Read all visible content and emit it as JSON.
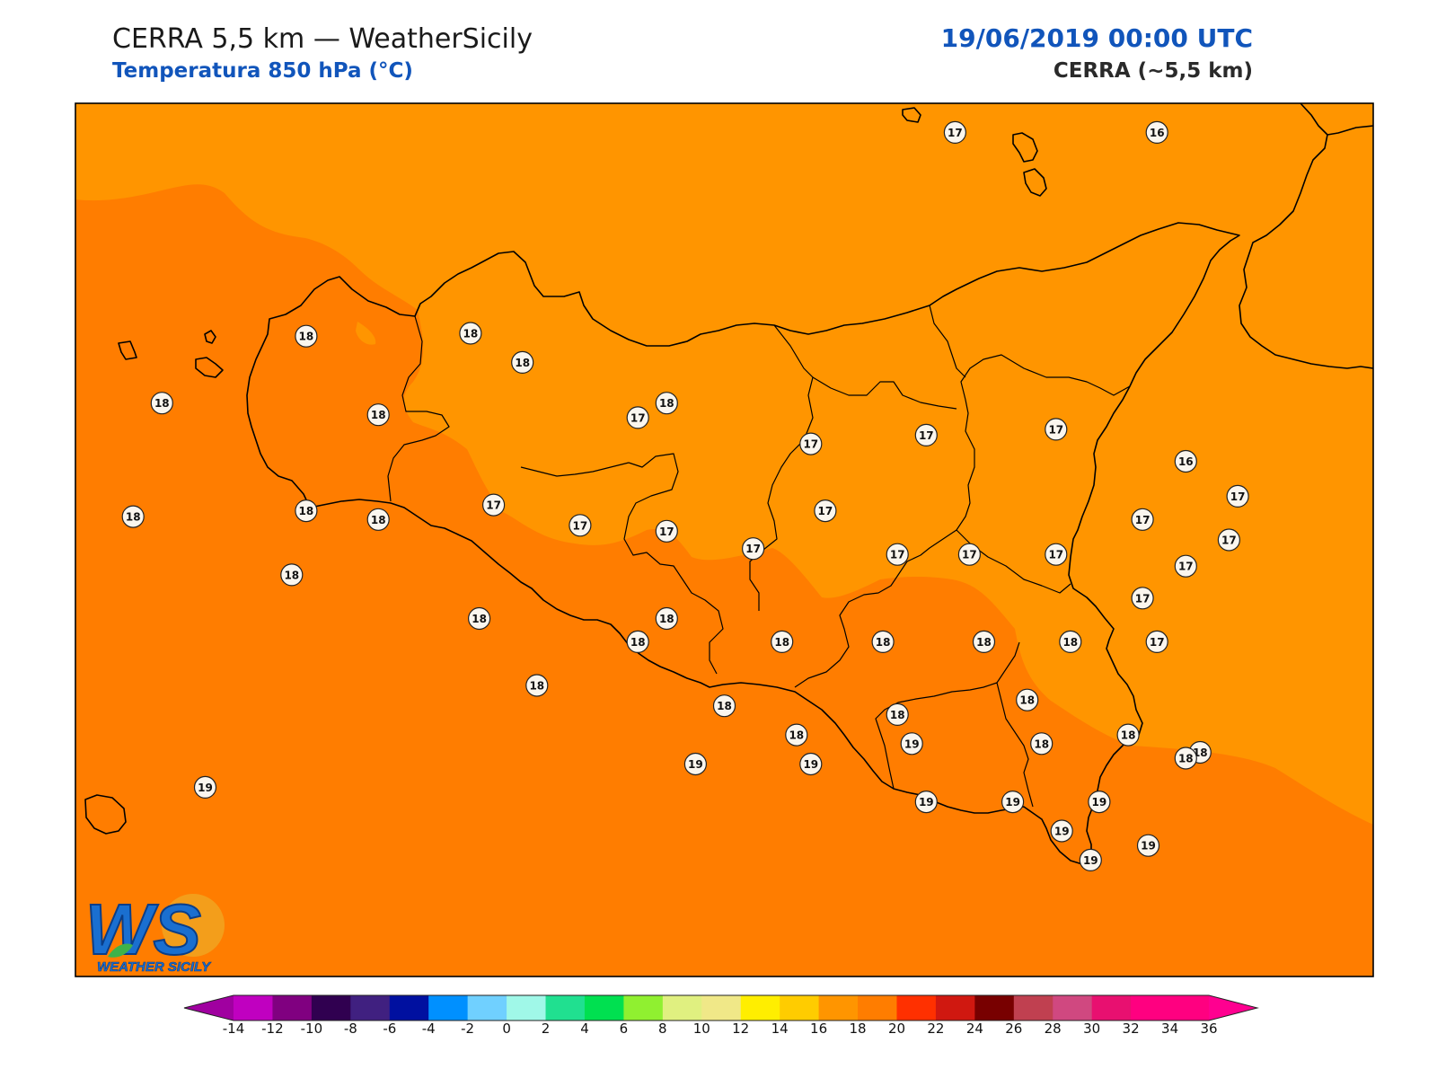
{
  "header": {
    "title": "CERRA 5,5 km — WeatherSicily",
    "subtitle": "Temperatura 850 hPa (°C)",
    "datetime": "19/06/2019 00:00 UTC",
    "model": "CERRA (~5,5 km)"
  },
  "logo": {
    "letters": "WS",
    "text": "WEATHER SICILY"
  },
  "colors": {
    "field_warm": "#ff7d00",
    "field_cool": "#ff9500",
    "coast": "#000000",
    "accent_blue": "#1155bb"
  },
  "colorbar": {
    "ticks": [
      "-14",
      "-12",
      "-10",
      "-8",
      "-6",
      "-4",
      "-2",
      "0",
      "2",
      "4",
      "6",
      "8",
      "10",
      "12",
      "14",
      "16",
      "18",
      "20",
      "22",
      "24",
      "26",
      "28",
      "30",
      "32",
      "34",
      "36"
    ],
    "min_color": "#a000a0",
    "max_color": "#ff0090",
    "colors": [
      "#c000c0",
      "#800080",
      "#300050",
      "#402080",
      "#0010a0",
      "#0090ff",
      "#70d0ff",
      "#a0f8e8",
      "#20e090",
      "#00e050",
      "#90f030",
      "#e0f080",
      "#f0e888",
      "#ffee00",
      "#ffcc00",
      "#ff9500",
      "#ff7d00",
      "#ff3000",
      "#d01810",
      "#780000",
      "#c04050",
      "#d04880",
      "#e81070",
      "#ff0080",
      "#ff0080"
    ]
  },
  "stations": [
    {
      "v": "17",
      "lon": 14.55,
      "lat": 38.95
    },
    {
      "v": "16",
      "lon": 15.25,
      "lat": 38.95
    },
    {
      "v": "18",
      "lon": 12.3,
      "lat": 38.25
    },
    {
      "v": "18",
      "lon": 12.87,
      "lat": 38.26
    },
    {
      "v": "18",
      "lon": 13.05,
      "lat": 38.16
    },
    {
      "v": "18",
      "lon": 11.8,
      "lat": 38.02
    },
    {
      "v": "18",
      "lon": 12.55,
      "lat": 37.98
    },
    {
      "v": "17",
      "lon": 13.45,
      "lat": 37.97
    },
    {
      "v": "18",
      "lon": 13.55,
      "lat": 38.02
    },
    {
      "v": "17",
      "lon": 14.05,
      "lat": 37.88
    },
    {
      "v": "17",
      "lon": 14.45,
      "lat": 37.91
    },
    {
      "v": "17",
      "lon": 14.9,
      "lat": 37.93
    },
    {
      "v": "16",
      "lon": 15.35,
      "lat": 37.82
    },
    {
      "v": "17",
      "lon": 15.53,
      "lat": 37.7
    },
    {
      "v": "17",
      "lon": 15.2,
      "lat": 37.62
    },
    {
      "v": "17",
      "lon": 15.5,
      "lat": 37.55
    },
    {
      "v": "17",
      "lon": 15.2,
      "lat": 37.35
    },
    {
      "v": "18",
      "lon": 11.7,
      "lat": 37.63
    },
    {
      "v": "18",
      "lon": 12.3,
      "lat": 37.65
    },
    {
      "v": "17",
      "lon": 12.95,
      "lat": 37.67
    },
    {
      "v": "18",
      "lon": 12.55,
      "lat": 37.62
    },
    {
      "v": "17",
      "lon": 13.25,
      "lat": 37.6
    },
    {
      "v": "17",
      "lon": 13.55,
      "lat": 37.58
    },
    {
      "v": "17",
      "lon": 14.1,
      "lat": 37.65
    },
    {
      "v": "17",
      "lon": 13.85,
      "lat": 37.52
    },
    {
      "v": "17",
      "lon": 14.35,
      "lat": 37.5
    },
    {
      "v": "17",
      "lon": 14.6,
      "lat": 37.5
    },
    {
      "v": "17",
      "lon": 14.9,
      "lat": 37.5
    },
    {
      "v": "17",
      "lon": 15.35,
      "lat": 37.46
    },
    {
      "v": "18",
      "lon": 12.25,
      "lat": 37.43
    },
    {
      "v": "18",
      "lon": 12.9,
      "lat": 37.28
    },
    {
      "v": "18",
      "lon": 13.55,
      "lat": 37.28
    },
    {
      "v": "18",
      "lon": 13.45,
      "lat": 37.2
    },
    {
      "v": "18",
      "lon": 13.95,
      "lat": 37.2
    },
    {
      "v": "18",
      "lon": 14.3,
      "lat": 37.2
    },
    {
      "v": "18",
      "lon": 14.65,
      "lat": 37.2
    },
    {
      "v": "18",
      "lon": 14.95,
      "lat": 37.2
    },
    {
      "v": "17",
      "lon": 15.25,
      "lat": 37.2
    },
    {
      "v": "18",
      "lon": 13.1,
      "lat": 37.05
    },
    {
      "v": "18",
      "lon": 13.75,
      "lat": 36.98
    },
    {
      "v": "18",
      "lon": 14.0,
      "lat": 36.88
    },
    {
      "v": "18",
      "lon": 14.35,
      "lat": 36.95
    },
    {
      "v": "18",
      "lon": 14.8,
      "lat": 37.0
    },
    {
      "v": "18",
      "lon": 15.15,
      "lat": 36.88
    },
    {
      "v": "18",
      "lon": 15.4,
      "lat": 36.82
    },
    {
      "v": "19",
      "lon": 11.95,
      "lat": 36.7
    },
    {
      "v": "19",
      "lon": 13.65,
      "lat": 36.78
    },
    {
      "v": "19",
      "lon": 14.05,
      "lat": 36.78
    },
    {
      "v": "19",
      "lon": 14.4,
      "lat": 36.85
    },
    {
      "v": "18",
      "lon": 14.85,
      "lat": 36.85
    },
    {
      "v": "18",
      "lon": 15.35,
      "lat": 36.8
    },
    {
      "v": "19",
      "lon": 14.45,
      "lat": 36.65
    },
    {
      "v": "19",
      "lon": 14.75,
      "lat": 36.65
    },
    {
      "v": "19",
      "lon": 15.05,
      "lat": 36.65
    },
    {
      "v": "19",
      "lon": 14.92,
      "lat": 36.55
    },
    {
      "v": "19",
      "lon": 15.22,
      "lat": 36.5
    },
    {
      "v": "19",
      "lon": 15.02,
      "lat": 36.45
    }
  ]
}
